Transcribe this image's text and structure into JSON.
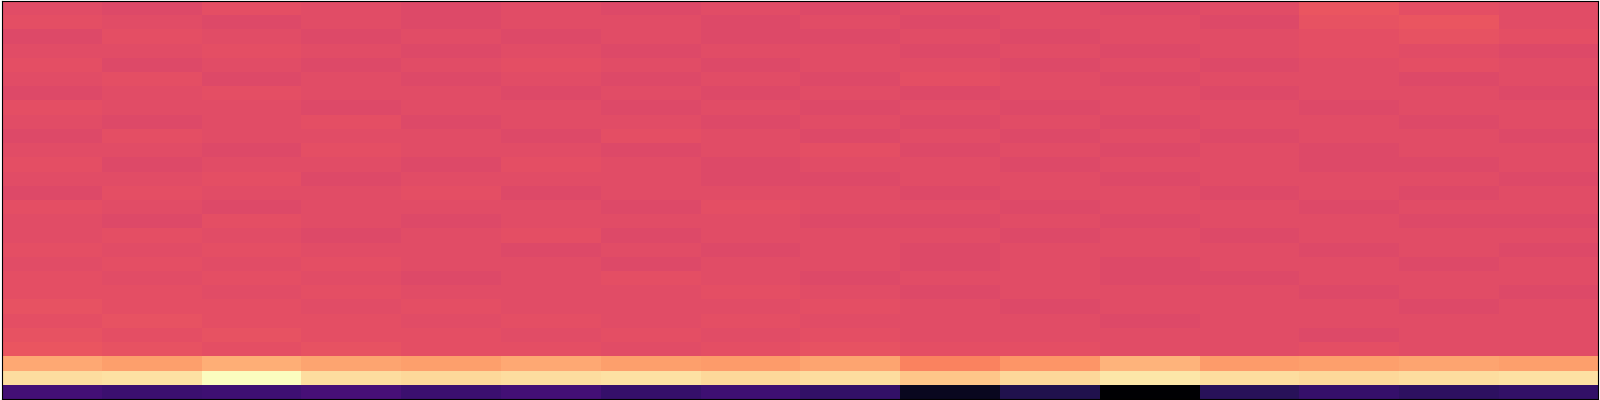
{
  "chart_data": {
    "type": "heatmap",
    "color": "magma",
    "tick_labels": false,
    "cells": [
      [
        61,
        60,
        62,
        61,
        60,
        61,
        60,
        61,
        60,
        61,
        61,
        60,
        61,
        64,
        62,
        61
      ],
      [
        62,
        61,
        60,
        61,
        60,
        61,
        61,
        60,
        61,
        60,
        61,
        61,
        60,
        63,
        64,
        61
      ],
      [
        60,
        62,
        61,
        60,
        61,
        60,
        61,
        60,
        60,
        61,
        60,
        61,
        61,
        62,
        63,
        62
      ],
      [
        61,
        61,
        62,
        61,
        60,
        61,
        60,
        61,
        61,
        60,
        61,
        60,
        61,
        62,
        61,
        60
      ],
      [
        62,
        60,
        61,
        60,
        61,
        62,
        61,
        60,
        61,
        61,
        60,
        61,
        60,
        61,
        62,
        61
      ],
      [
        61,
        62,
        60,
        61,
        60,
        61,
        60,
        61,
        60,
        62,
        61,
        60,
        61,
        61,
        60,
        61
      ],
      [
        60,
        61,
        62,
        61,
        61,
        60,
        61,
        60,
        61,
        60,
        61,
        61,
        60,
        61,
        61,
        60
      ],
      [
        62,
        61,
        61,
        60,
        61,
        61,
        60,
        61,
        60,
        61,
        60,
        61,
        61,
        60,
        61,
        61
      ],
      [
        61,
        60,
        61,
        62,
        60,
        61,
        61,
        60,
        61,
        60,
        61,
        60,
        61,
        61,
        60,
        61
      ],
      [
        60,
        62,
        61,
        61,
        61,
        60,
        62,
        61,
        60,
        61,
        60,
        61,
        60,
        61,
        61,
        60
      ],
      [
        61,
        61,
        60,
        62,
        61,
        61,
        60,
        61,
        62,
        60,
        61,
        60,
        61,
        60,
        61,
        61
      ],
      [
        62,
        60,
        61,
        61,
        60,
        62,
        61,
        60,
        61,
        61,
        60,
        61,
        61,
        60,
        60,
        61
      ],
      [
        61,
        61,
        62,
        60,
        61,
        61,
        61,
        60,
        60,
        61,
        61,
        60,
        61,
        61,
        61,
        60
      ],
      [
        60,
        62,
        61,
        61,
        62,
        60,
        61,
        61,
        61,
        60,
        61,
        61,
        60,
        61,
        60,
        61
      ],
      [
        62,
        61,
        60,
        61,
        61,
        61,
        60,
        62,
        61,
        61,
        60,
        61,
        61,
        60,
        61,
        61
      ],
      [
        61,
        60,
        62,
        61,
        60,
        61,
        61,
        61,
        60,
        60,
        61,
        60,
        61,
        61,
        60,
        60
      ],
      [
        61,
        62,
        61,
        60,
        61,
        62,
        60,
        61,
        61,
        61,
        60,
        61,
        60,
        61,
        61,
        61
      ],
      [
        62,
        61,
        62,
        61,
        61,
        60,
        61,
        60,
        61,
        60,
        61,
        61,
        61,
        60,
        61,
        60
      ],
      [
        61,
        62,
        61,
        62,
        61,
        61,
        60,
        61,
        61,
        60,
        61,
        60,
        61,
        61,
        60,
        61
      ],
      [
        62,
        61,
        62,
        61,
        60,
        61,
        62,
        61,
        60,
        61,
        61,
        60,
        60,
        61,
        61,
        61
      ],
      [
        62,
        62,
        61,
        62,
        61,
        61,
        61,
        62,
        61,
        60,
        61,
        61,
        61,
        60,
        61,
        60
      ],
      [
        63,
        62,
        62,
        61,
        62,
        61,
        61,
        61,
        62,
        61,
        60,
        61,
        61,
        61,
        60,
        61
      ],
      [
        62,
        63,
        62,
        62,
        61,
        62,
        61,
        62,
        61,
        61,
        61,
        60,
        61,
        61,
        61,
        61
      ],
      [
        63,
        62,
        63,
        62,
        62,
        61,
        62,
        61,
        62,
        61,
        61,
        61,
        61,
        60,
        61,
        61
      ],
      [
        64,
        63,
        62,
        63,
        62,
        62,
        61,
        62,
        63,
        62,
        62,
        61,
        61,
        62,
        61,
        61
      ],
      [
        82,
        80,
        83,
        81,
        80,
        82,
        80,
        79,
        81,
        74,
        78,
        84,
        79,
        80,
        81,
        80
      ],
      [
        93,
        94,
        100,
        93,
        92,
        93,
        94,
        92,
        93,
        88,
        92,
        95,
        93,
        92,
        93,
        94
      ],
      [
        22,
        20,
        21,
        23,
        20,
        22,
        19,
        21,
        18,
        6,
        14,
        0,
        16,
        19,
        17,
        18
      ]
    ]
  }
}
